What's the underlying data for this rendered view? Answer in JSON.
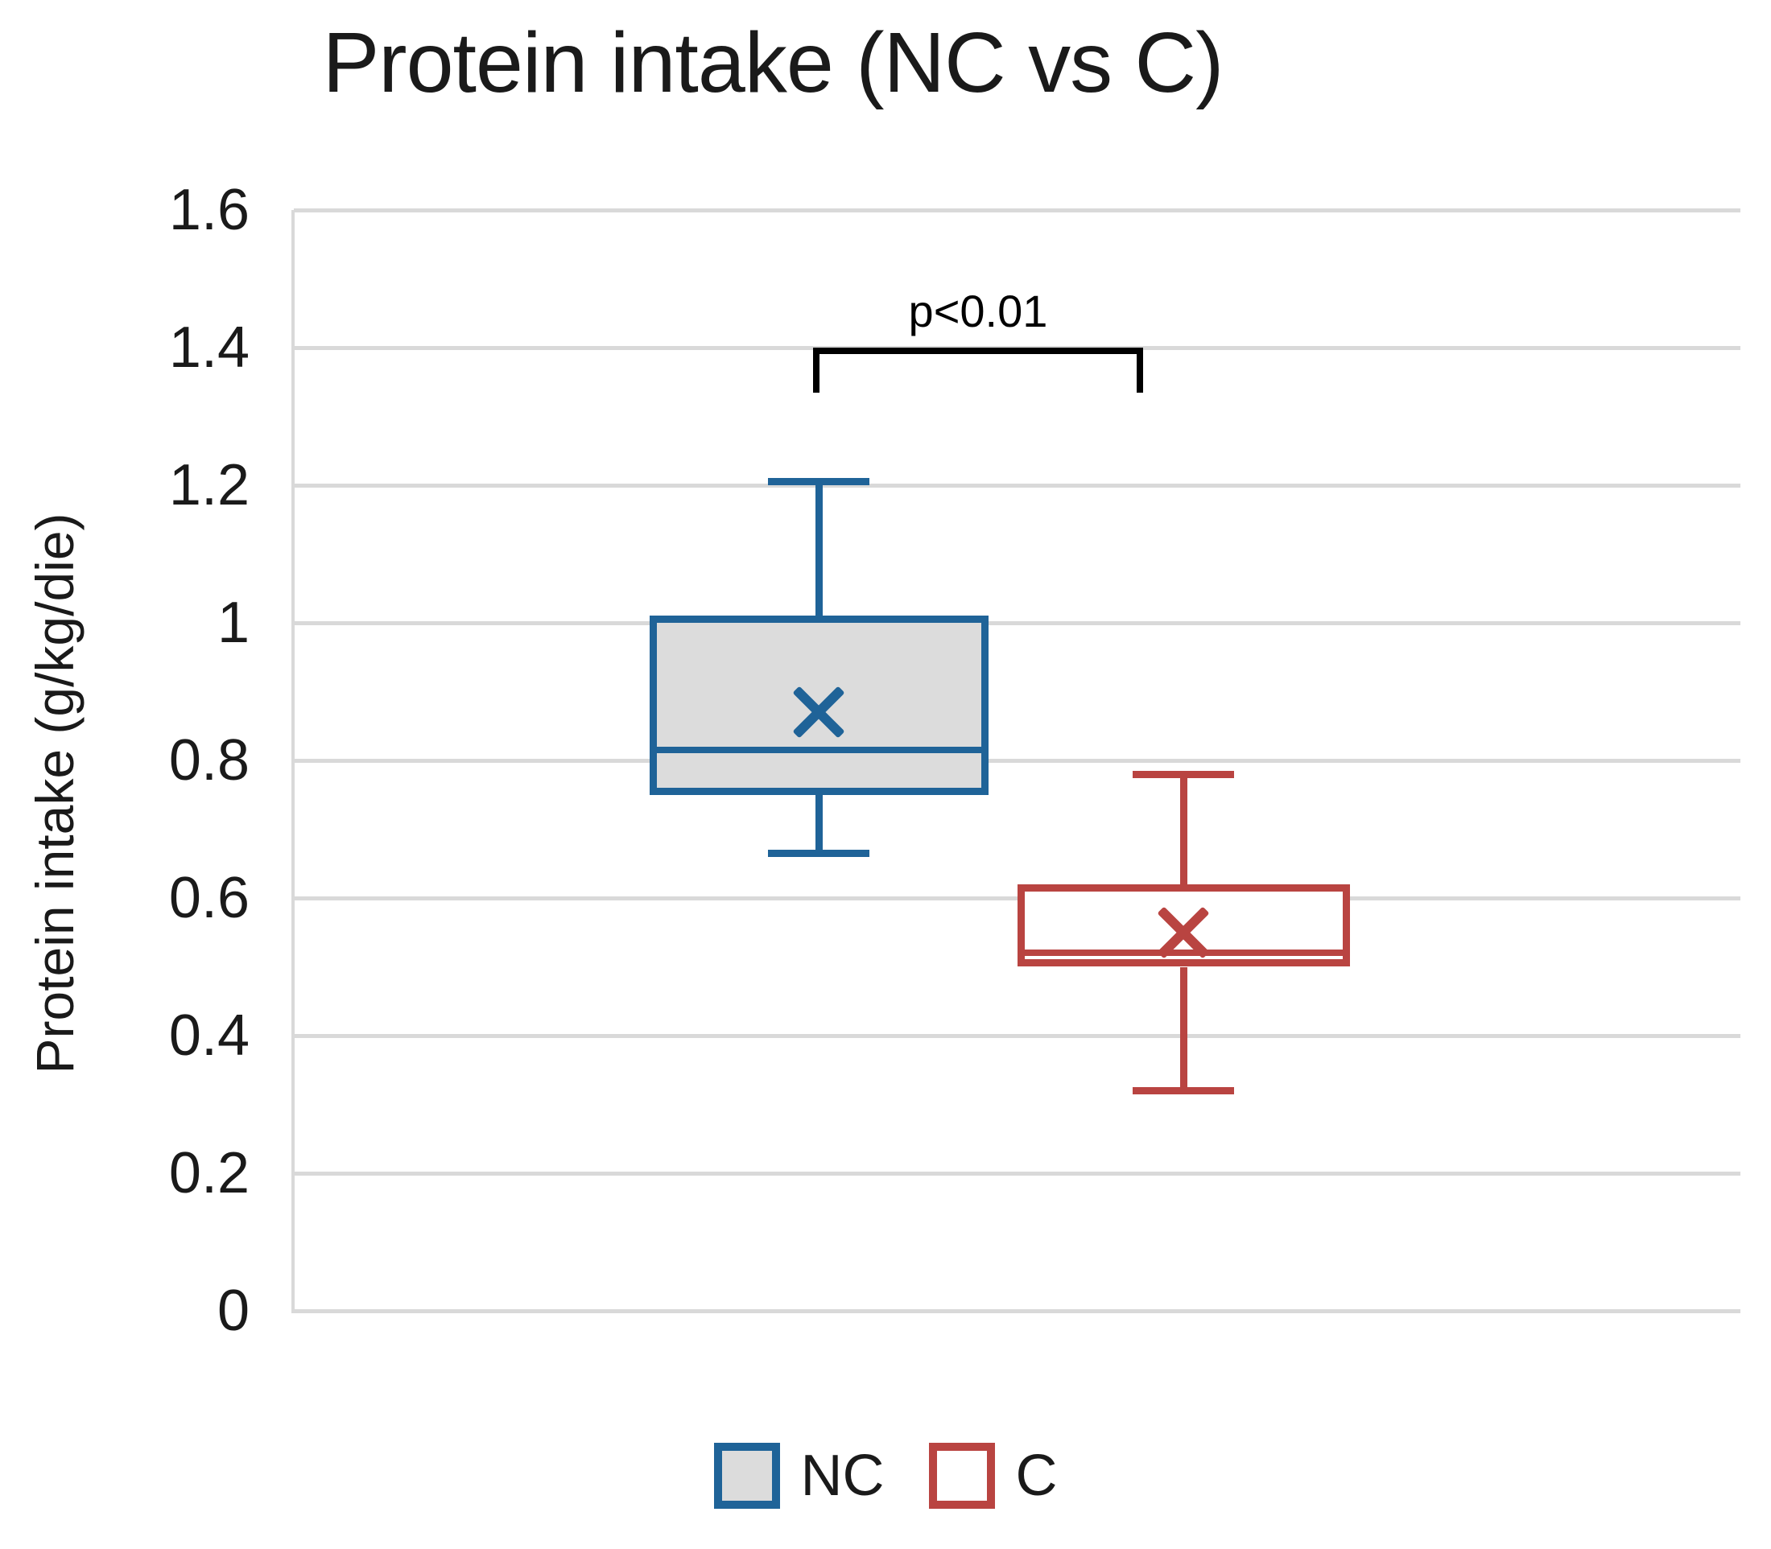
{
  "chart_data": {
    "type": "boxplot",
    "title": "Protein intake (NC vs C)",
    "ylabel": "Protein intake (g/kg/die)",
    "xlabel": "",
    "ylim": [
      0,
      1.6
    ],
    "ytick_interval": 0.2,
    "yticks": [
      "0",
      "0.2",
      "0.4",
      "0.6",
      "0.8",
      "1",
      "1.2",
      "1.4",
      "1.6"
    ],
    "grid": true,
    "gridline_color": "#d9d9d9",
    "legend_position": "bottom",
    "series": [
      {
        "name": "NC",
        "min": 0.665,
        "q1": 0.75,
        "median": 0.815,
        "q3": 1.01,
        "max": 1.205,
        "mean": 0.87,
        "border_color": "#1f6398",
        "fill_color": "#dcdcdc",
        "x_center_frac": 0.363,
        "box_width_frac": 0.234,
        "cap_width_frac": 0.07
      },
      {
        "name": "C",
        "min": 0.32,
        "q1": 0.5,
        "median": 0.52,
        "q3": 0.62,
        "max": 0.78,
        "mean": 0.55,
        "border_color": "#b94441",
        "fill_color": "#ffffff",
        "x_center_frac": 0.615,
        "box_width_frac": 0.23,
        "cap_width_frac": 0.07
      }
    ],
    "annotation": {
      "label": "p<0.01",
      "y_value": 1.4,
      "drop": 0.065,
      "x1_frac": 0.359,
      "x2_frac": 0.587,
      "color": "#000000"
    }
  }
}
